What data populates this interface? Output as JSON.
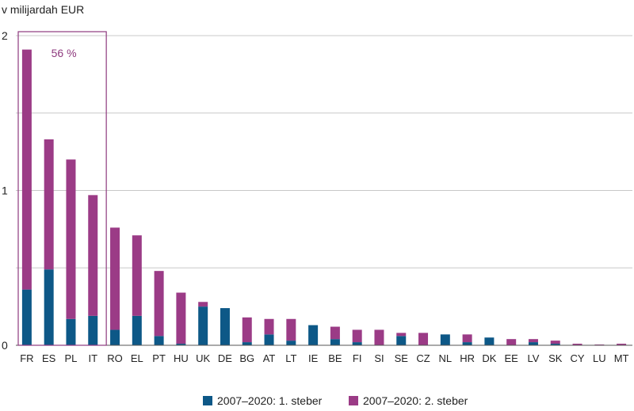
{
  "chart_data": {
    "type": "bar",
    "stacked": true,
    "ylabel": "v milijardah EUR",
    "ylim": [
      0,
      2
    ],
    "yticks": [
      0,
      1,
      2
    ],
    "grid": true,
    "legend_position": "bottom",
    "categories": [
      "FR",
      "ES",
      "PL",
      "IT",
      "RO",
      "EL",
      "PT",
      "HU",
      "UK",
      "DE",
      "BG",
      "AT",
      "LT",
      "IE",
      "BE",
      "FI",
      "SI",
      "SE",
      "CZ",
      "NL",
      "HR",
      "DK",
      "EE",
      "LV",
      "SK",
      "CY",
      "LU",
      "MT"
    ],
    "series": [
      {
        "name": "2007–2020: 1. steber",
        "color": "#0d5887",
        "values": [
          0.36,
          0.49,
          0.17,
          0.19,
          0.1,
          0.19,
          0.06,
          0.01,
          0.25,
          0.24,
          0.02,
          0.07,
          0.03,
          0.13,
          0.04,
          0.02,
          0.0,
          0.06,
          0.0,
          0.07,
          0.02,
          0.05,
          0.0,
          0.02,
          0.01,
          0.0,
          0.0,
          0.0
        ]
      },
      {
        "name": "2007–2020: 2. steber",
        "color": "#9b3b86",
        "values": [
          1.55,
          0.84,
          1.03,
          0.78,
          0.66,
          0.52,
          0.42,
          0.33,
          0.03,
          0.0,
          0.16,
          0.1,
          0.14,
          0.0,
          0.08,
          0.08,
          0.1,
          0.02,
          0.08,
          0.0,
          0.05,
          0.0,
          0.04,
          0.02,
          0.02,
          0.01,
          0.005,
          0.01
        ]
      }
    ],
    "annotation": {
      "label": "56 %",
      "categories": [
        "FR",
        "ES",
        "PL",
        "IT"
      ]
    }
  }
}
